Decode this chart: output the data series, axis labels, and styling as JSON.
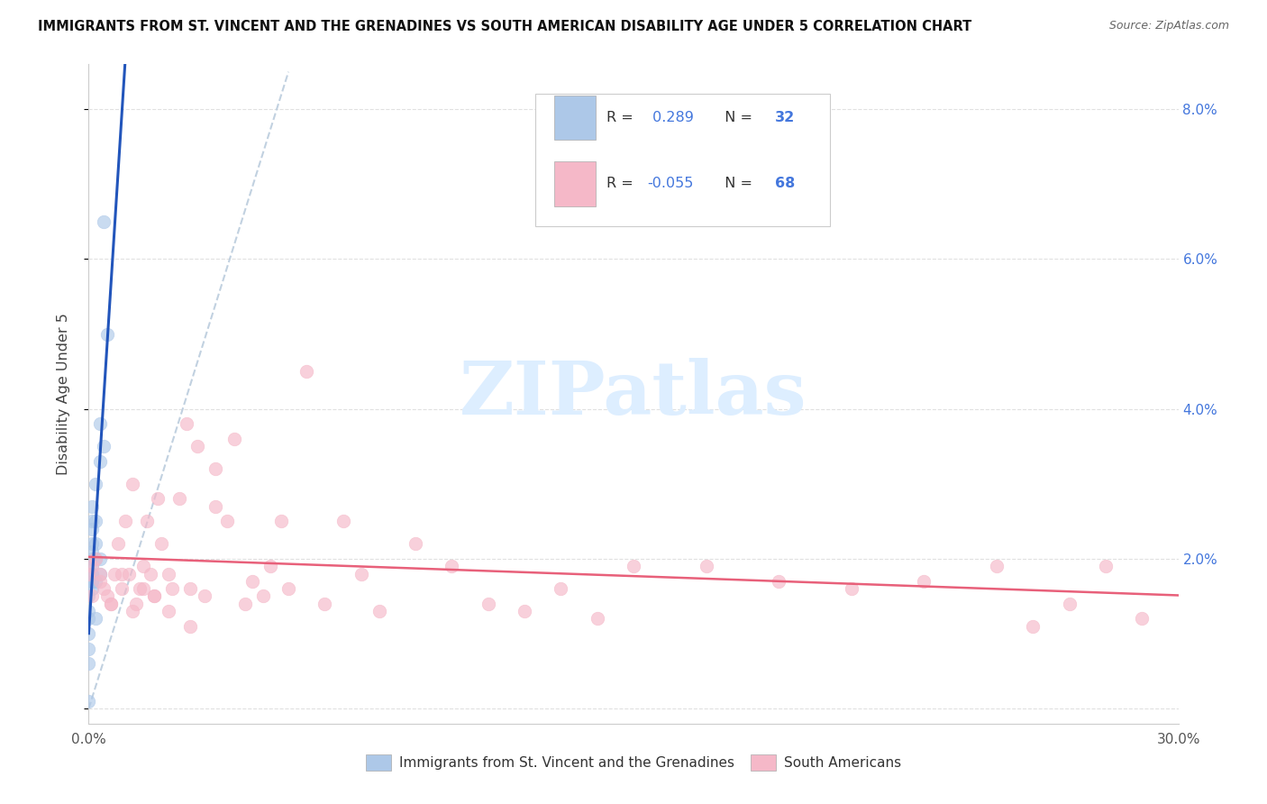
{
  "title": "IMMIGRANTS FROM ST. VINCENT AND THE GRENADINES VS SOUTH AMERICAN DISABILITY AGE UNDER 5 CORRELATION CHART",
  "source": "Source: ZipAtlas.com",
  "ylabel": "Disability Age Under 5",
  "xlim": [
    0.0,
    0.3
  ],
  "ylim": [
    -0.002,
    0.086
  ],
  "xticks": [
    0.0,
    0.05,
    0.1,
    0.15,
    0.2,
    0.25,
    0.3
  ],
  "xtick_labels_show": [
    "0.0%",
    "",
    "",
    "",
    "",
    "",
    "30.0%"
  ],
  "yticks_right": [
    0.0,
    0.02,
    0.04,
    0.06,
    0.08
  ],
  "ytick_labels_right": [
    "",
    "2.0%",
    "4.0%",
    "6.0%",
    "8.0%"
  ],
  "legend_label1_blue": "Immigrants from St. Vincent and the Grenadines",
  "legend_label2_pink": "South Americans",
  "blue_color": "#adc8e8",
  "pink_color": "#f5b8c8",
  "reg_blue_color": "#2255bb",
  "reg_pink_color": "#e8607a",
  "dash_color": "#bbccdd",
  "blue_scatter_x": [
    0.0,
    0.0,
    0.0,
    0.0,
    0.0,
    0.0,
    0.0,
    0.001,
    0.001,
    0.001,
    0.001,
    0.001,
    0.001,
    0.001,
    0.001,
    0.001,
    0.001,
    0.001,
    0.001,
    0.002,
    0.002,
    0.002,
    0.002,
    0.002,
    0.002,
    0.003,
    0.003,
    0.003,
    0.003,
    0.004,
    0.004,
    0.005
  ],
  "blue_scatter_y": [
    0.001,
    0.006,
    0.008,
    0.01,
    0.012,
    0.013,
    0.015,
    0.016,
    0.017,
    0.017,
    0.018,
    0.018,
    0.019,
    0.02,
    0.021,
    0.022,
    0.024,
    0.025,
    0.027,
    0.012,
    0.017,
    0.02,
    0.022,
    0.025,
    0.03,
    0.018,
    0.02,
    0.033,
    0.038,
    0.035,
    0.065,
    0.05
  ],
  "pink_scatter_x": [
    0.0,
    0.001,
    0.001,
    0.002,
    0.003,
    0.004,
    0.005,
    0.006,
    0.007,
    0.008,
    0.009,
    0.01,
    0.011,
    0.012,
    0.013,
    0.014,
    0.015,
    0.016,
    0.017,
    0.018,
    0.019,
    0.02,
    0.022,
    0.023,
    0.025,
    0.027,
    0.028,
    0.03,
    0.032,
    0.035,
    0.038,
    0.04,
    0.043,
    0.045,
    0.048,
    0.05,
    0.053,
    0.055,
    0.06,
    0.065,
    0.07,
    0.075,
    0.08,
    0.09,
    0.1,
    0.11,
    0.12,
    0.13,
    0.14,
    0.15,
    0.17,
    0.19,
    0.21,
    0.23,
    0.25,
    0.26,
    0.27,
    0.28,
    0.29,
    0.003,
    0.006,
    0.009,
    0.012,
    0.015,
    0.018,
    0.022,
    0.028,
    0.035
  ],
  "pink_scatter_y": [
    0.018,
    0.015,
    0.019,
    0.02,
    0.018,
    0.016,
    0.015,
    0.014,
    0.018,
    0.022,
    0.016,
    0.025,
    0.018,
    0.03,
    0.014,
    0.016,
    0.019,
    0.025,
    0.018,
    0.015,
    0.028,
    0.022,
    0.018,
    0.016,
    0.028,
    0.038,
    0.016,
    0.035,
    0.015,
    0.032,
    0.025,
    0.036,
    0.014,
    0.017,
    0.015,
    0.019,
    0.025,
    0.016,
    0.045,
    0.014,
    0.025,
    0.018,
    0.013,
    0.022,
    0.019,
    0.014,
    0.013,
    0.016,
    0.012,
    0.019,
    0.019,
    0.017,
    0.016,
    0.017,
    0.019,
    0.011,
    0.014,
    0.019,
    0.012,
    0.017,
    0.014,
    0.018,
    0.013,
    0.016,
    0.015,
    0.013,
    0.011,
    0.027
  ],
  "watermark_text": "ZIPatlas",
  "watermark_color": "#ddeeff",
  "background_color": "#ffffff",
  "grid_color": "#dddddd",
  "title_fontsize": 10.5,
  "source_fontsize": 9,
  "scatter_size": 110,
  "scatter_alpha": 0.65
}
